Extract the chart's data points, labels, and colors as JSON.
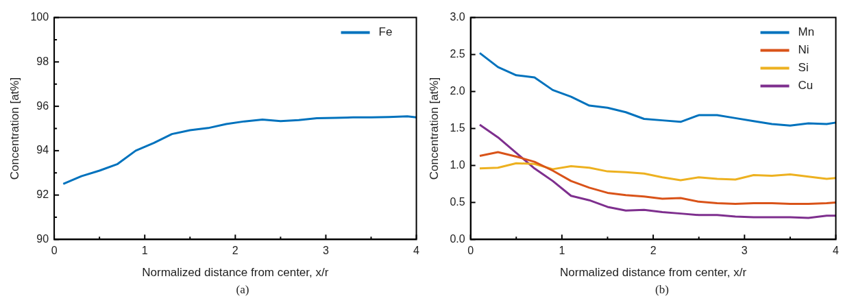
{
  "chart_data": [
    {
      "type": "line",
      "xlabel": "Normalized distance from center, x/r",
      "ylabel": "Concentration [at%]",
      "annotations": [
        "(a)"
      ],
      "xlim": [
        0,
        4
      ],
      "xticks": [
        0,
        {
          "value": 0.5,
          "label": null
        },
        1,
        {
          "value": 1.5,
          "label": null
        },
        2,
        {
          "value": 2.5,
          "label": null
        },
        3,
        {
          "value": 3.5,
          "label": null
        },
        4
      ],
      "ylim": [
        90,
        100
      ],
      "yticks": [
        90,
        {
          "value": 91,
          "label": null
        },
        92,
        {
          "value": 93,
          "label": null
        },
        94,
        {
          "value": 95,
          "label": null
        },
        96,
        {
          "value": 97,
          "label": null
        },
        98,
        {
          "value": 99,
          "label": null
        },
        100
      ],
      "legend": "top right",
      "grid": false,
      "x": [
        0.1,
        0.3,
        0.5,
        0.7,
        0.9,
        1.1,
        1.3,
        1.5,
        1.7,
        1.9,
        2.1,
        2.3,
        2.5,
        2.7,
        2.9,
        3.1,
        3.3,
        3.5,
        3.7,
        3.9,
        4.0
      ],
      "series": [
        {
          "name": "Fe",
          "color": "#0072bd",
          "values": [
            92.5,
            92.85,
            93.1,
            93.4,
            94.0,
            94.35,
            94.75,
            94.92,
            95.02,
            95.2,
            95.32,
            95.4,
            95.33,
            95.38,
            95.46,
            95.48,
            95.5,
            95.5,
            95.52,
            95.55,
            95.5
          ]
        }
      ]
    },
    {
      "type": "line",
      "xlabel": "Normalized distance from center, x/r",
      "ylabel": "Concentration [at%]",
      "annotations": [
        "(b)"
      ],
      "xlim": [
        0,
        4
      ],
      "xticks": [
        0,
        {
          "value": 0.5,
          "label": null
        },
        1,
        {
          "value": 1.5,
          "label": null
        },
        2,
        {
          "value": 2.5,
          "label": null
        },
        3,
        {
          "value": 3.5,
          "label": null
        },
        4
      ],
      "ylim": [
        0,
        3
      ],
      "yticks": [
        {
          "value": 0,
          "label": "0.0"
        },
        0.5,
        {
          "value": 1,
          "label": "1.0"
        },
        1.5,
        {
          "value": 2,
          "label": "2.0"
        },
        2.5,
        {
          "value": 3,
          "label": "3.0"
        }
      ],
      "legend": "top right",
      "grid": false,
      "x": [
        0.1,
        0.3,
        0.5,
        0.7,
        0.9,
        1.1,
        1.3,
        1.5,
        1.7,
        1.9,
        2.1,
        2.3,
        2.5,
        2.7,
        2.9,
        3.1,
        3.3,
        3.5,
        3.7,
        3.9,
        4.0
      ],
      "series": [
        {
          "name": "Mn",
          "color": "#0072bd",
          "values": [
            2.52,
            2.33,
            2.22,
            2.19,
            2.02,
            1.93,
            1.81,
            1.78,
            1.72,
            1.63,
            1.61,
            1.59,
            1.68,
            1.68,
            1.64,
            1.6,
            1.56,
            1.54,
            1.57,
            1.56,
            1.58
          ]
        },
        {
          "name": "Ni",
          "color": "#d95319",
          "values": [
            1.13,
            1.18,
            1.12,
            1.05,
            0.93,
            0.79,
            0.7,
            0.63,
            0.6,
            0.58,
            0.55,
            0.56,
            0.51,
            0.49,
            0.48,
            0.49,
            0.49,
            0.48,
            0.48,
            0.49,
            0.5
          ]
        },
        {
          "name": "Si",
          "color": "#edb120",
          "values": [
            0.96,
            0.97,
            1.03,
            1.02,
            0.95,
            0.99,
            0.97,
            0.92,
            0.91,
            0.89,
            0.84,
            0.8,
            0.84,
            0.82,
            0.81,
            0.87,
            0.86,
            0.88,
            0.85,
            0.82,
            0.83
          ]
        },
        {
          "name": "Cu",
          "color": "#7e2f8e",
          "values": [
            1.55,
            1.38,
            1.17,
            0.96,
            0.79,
            0.59,
            0.53,
            0.44,
            0.39,
            0.4,
            0.37,
            0.35,
            0.33,
            0.33,
            0.31,
            0.3,
            0.3,
            0.3,
            0.29,
            0.32,
            0.32
          ]
        }
      ]
    }
  ]
}
